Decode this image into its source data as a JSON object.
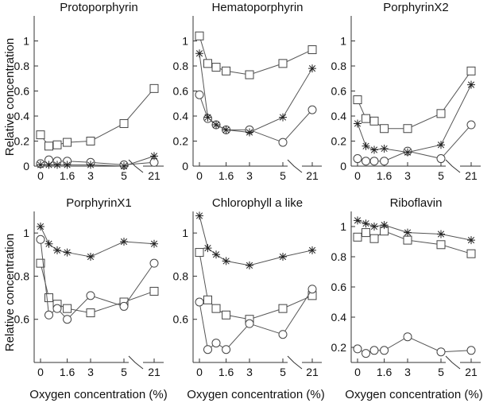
{
  "figure": {
    "ylabel": "Relative concentration",
    "xlabel": "Oxygen concentration (%)"
  },
  "chart_data": [
    {
      "type": "line",
      "title": "Protoporphyrin",
      "x_tick_labels": [
        "0",
        "1.6",
        "3",
        "5",
        "21"
      ],
      "y_tick_labels": [
        "0",
        "0.2",
        "0.4",
        "0.6",
        "0.8",
        "1"
      ],
      "ylim": [
        0,
        1.2
      ],
      "axis_break": "between 5 and 21",
      "series": [
        {
          "marker": "square",
          "x": [
            0,
            0.5,
            1,
            1.6,
            3,
            5,
            21
          ],
          "y": [
            0.25,
            0.16,
            0.17,
            0.19,
            0.2,
            0.34,
            0.62
          ]
        },
        {
          "marker": "circle",
          "x": [
            0,
            0.5,
            1,
            1.6,
            3,
            5,
            21
          ],
          "y": [
            0.02,
            0.05,
            0.04,
            0.04,
            0.03,
            0.01,
            0.03
          ]
        },
        {
          "marker": "asterisk",
          "x": [
            0,
            0.5,
            1,
            1.6,
            3,
            5,
            21
          ],
          "y": [
            0.01,
            0.01,
            0.01,
            0.01,
            0.01,
            0.0,
            0.08
          ]
        }
      ]
    },
    {
      "type": "line",
      "title": "Hematoporphyrin",
      "x_tick_labels": [
        "0",
        "1.6",
        "3",
        "5",
        "21"
      ],
      "y_tick_labels": [
        "0",
        "0.2",
        "0.4",
        "0.6",
        "0.8",
        "1"
      ],
      "ylim": [
        0,
        1.2
      ],
      "axis_break": "between 5 and 21",
      "series": [
        {
          "marker": "square",
          "x": [
            0,
            0.5,
            1,
            1.6,
            3,
            5,
            21
          ],
          "y": [
            1.04,
            0.82,
            0.79,
            0.76,
            0.73,
            0.82,
            0.93
          ]
        },
        {
          "marker": "circle",
          "x": [
            0,
            0.5,
            1,
            1.6,
            3,
            5,
            21
          ],
          "y": [
            0.57,
            0.38,
            0.33,
            0.29,
            0.29,
            0.19,
            0.45
          ]
        },
        {
          "marker": "asterisk",
          "x": [
            0,
            0.5,
            1,
            1.6,
            3,
            5,
            21
          ],
          "y": [
            0.9,
            0.39,
            0.33,
            0.29,
            0.27,
            0.39,
            0.78
          ]
        }
      ]
    },
    {
      "type": "line",
      "title": "PorphyrinX2",
      "x_tick_labels": [
        "0",
        "1.6",
        "3",
        "5",
        "21"
      ],
      "y_tick_labels": [
        "0",
        "0.2",
        "0.4",
        "0.6",
        "0.8",
        "1"
      ],
      "ylim": [
        0,
        1.2
      ],
      "axis_break": "between 5 and 21",
      "series": [
        {
          "marker": "square",
          "x": [
            0,
            0.5,
            1,
            1.6,
            3,
            5,
            21
          ],
          "y": [
            0.53,
            0.38,
            0.36,
            0.3,
            0.3,
            0.42,
            0.76
          ]
        },
        {
          "marker": "circle",
          "x": [
            0,
            0.5,
            1,
            1.6,
            3,
            5,
            21
          ],
          "y": [
            0.06,
            0.04,
            0.04,
            0.04,
            0.12,
            0.06,
            0.33
          ]
        },
        {
          "marker": "asterisk",
          "x": [
            0,
            0.5,
            1,
            1.6,
            3,
            5,
            21
          ],
          "y": [
            0.34,
            0.16,
            0.13,
            0.14,
            0.11,
            0.17,
            0.65
          ]
        }
      ]
    },
    {
      "type": "line",
      "title": "PorphyrinX1",
      "x_tick_labels": [
        "0",
        "1.6",
        "3",
        "5",
        "21"
      ],
      "y_tick_labels": [
        "0.6",
        "0.8",
        "1"
      ],
      "ylim": [
        0.4,
        1.1
      ],
      "axis_break": "between 5 and 21",
      "series": [
        {
          "marker": "square",
          "x": [
            0,
            0.5,
            1,
            1.6,
            3,
            5,
            21
          ],
          "y": [
            0.86,
            0.7,
            0.67,
            0.65,
            0.63,
            0.68,
            0.73
          ]
        },
        {
          "marker": "circle",
          "x": [
            0,
            0.5,
            1,
            1.6,
            3,
            5,
            21
          ],
          "y": [
            0.97,
            0.62,
            0.65,
            0.6,
            0.71,
            0.66,
            0.86
          ]
        },
        {
          "marker": "asterisk",
          "x": [
            0,
            0.5,
            1,
            1.6,
            3,
            5,
            21
          ],
          "y": [
            1.03,
            0.95,
            0.92,
            0.91,
            0.89,
            0.96,
            0.95
          ]
        }
      ]
    },
    {
      "type": "line",
      "title": "Chlorophyll a like",
      "x_tick_labels": [
        "0",
        "1.6",
        "3",
        "5",
        "21"
      ],
      "y_tick_labels": [
        "0.6",
        "0.8",
        "1"
      ],
      "ylim": [
        0.4,
        1.1
      ],
      "axis_break": "between 5 and 21",
      "series": [
        {
          "marker": "square",
          "x": [
            0,
            0.5,
            1,
            1.6,
            3,
            5,
            21
          ],
          "y": [
            0.91,
            0.69,
            0.65,
            0.62,
            0.6,
            0.65,
            0.71
          ]
        },
        {
          "marker": "circle",
          "x": [
            0,
            0.5,
            1,
            1.6,
            3,
            5,
            21
          ],
          "y": [
            0.68,
            0.46,
            0.49,
            0.46,
            0.58,
            0.53,
            0.74
          ]
        },
        {
          "marker": "asterisk",
          "x": [
            0,
            0.5,
            1,
            1.6,
            3,
            5,
            21
          ],
          "y": [
            1.08,
            0.93,
            0.9,
            0.87,
            0.85,
            0.89,
            0.92
          ]
        }
      ]
    },
    {
      "type": "line",
      "title": "Riboflavin",
      "x_tick_labels": [
        "0",
        "1.6",
        "3",
        "5",
        "21"
      ],
      "y_tick_labels": [
        "0.2",
        "0.4",
        "0.6",
        "0.8",
        "1"
      ],
      "ylim": [
        0.1,
        1.1
      ],
      "axis_break": "between 5 and 21",
      "series": [
        {
          "marker": "square",
          "x": [
            0,
            0.5,
            1,
            1.6,
            3,
            5,
            21
          ],
          "y": [
            0.93,
            0.96,
            0.92,
            0.97,
            0.91,
            0.88,
            0.82
          ]
        },
        {
          "marker": "circle",
          "x": [
            0,
            0.5,
            1,
            1.6,
            3,
            5,
            21
          ],
          "y": [
            0.19,
            0.16,
            0.18,
            0.18,
            0.27,
            0.17,
            0.18
          ]
        },
        {
          "marker": "asterisk",
          "x": [
            0,
            0.5,
            1,
            1.6,
            3,
            5,
            21
          ],
          "y": [
            1.04,
            1.02,
            1.0,
            1.01,
            0.96,
            0.95,
            0.91
          ]
        }
      ]
    }
  ]
}
